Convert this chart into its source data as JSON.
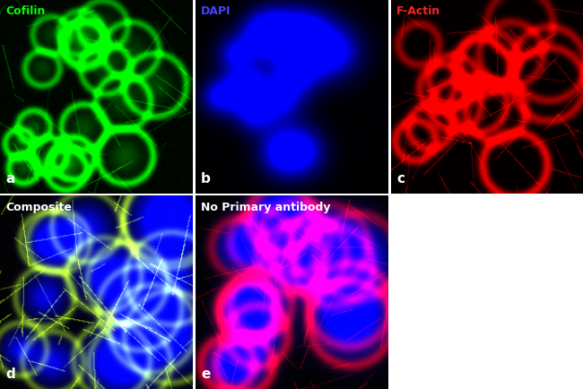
{
  "figure_width": 6.5,
  "figure_height": 4.34,
  "dpi": 100,
  "background_color": "#ffffff",
  "panels": [
    {
      "id": "a",
      "label": "a",
      "title": "Cofilin",
      "title_color": "#00ff00",
      "label_color": "#ffffff",
      "channel": "green",
      "row": 0,
      "col": 0
    },
    {
      "id": "b",
      "label": "b",
      "title": "DAPI",
      "title_color": "#4444ff",
      "label_color": "#ffffff",
      "channel": "blue",
      "row": 0,
      "col": 1
    },
    {
      "id": "c",
      "label": "c",
      "title": "F-Actin",
      "title_color": "#ff2222",
      "label_color": "#ffffff",
      "channel": "red",
      "row": 0,
      "col": 2
    },
    {
      "id": "d",
      "label": "d",
      "title": "Composite",
      "title_color": "#ffffff",
      "label_color": "#ffffff",
      "channel": "composite",
      "row": 1,
      "col": 0
    },
    {
      "id": "e",
      "label": "e",
      "title": "No Primary antibody",
      "title_color": "#ffffff",
      "label_color": "#ffffff",
      "channel": "noprimary",
      "row": 1,
      "col": 1
    }
  ],
  "grid_rows": 2,
  "grid_cols": 3,
  "title_fontsize": 9,
  "label_fontsize": 11
}
